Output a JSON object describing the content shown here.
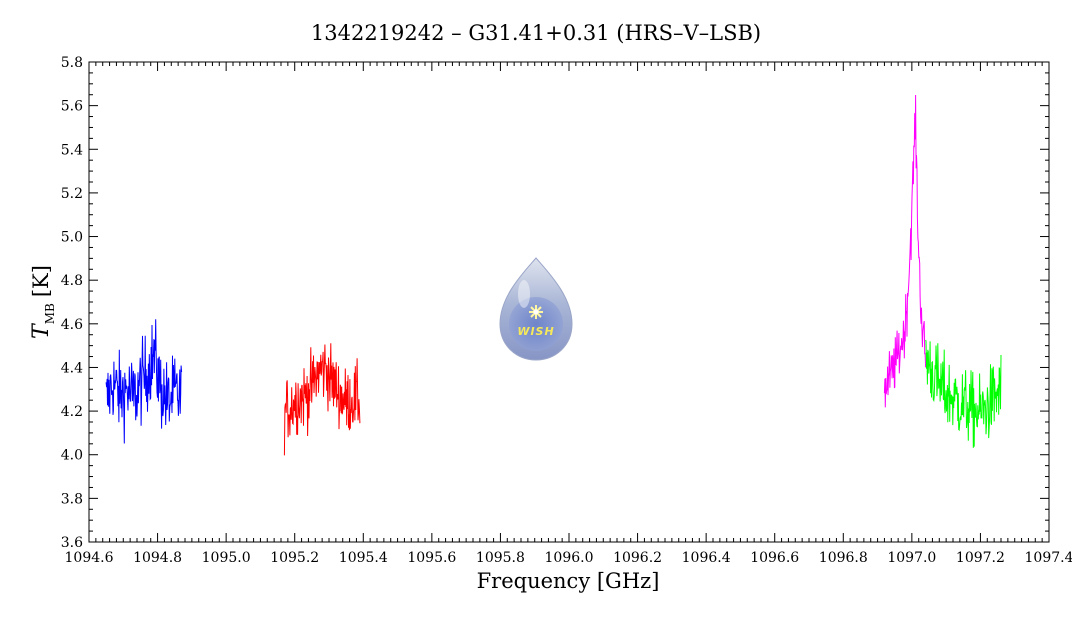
{
  "chart_data": {
    "type": "line",
    "title": "1342219242 – G31.41+0.31 (HRS–V–LSB)",
    "xlabel": "Frequency [GHz]",
    "ylabel": {
      "symbol": "T",
      "subscript": "MB",
      "unit": "[K]"
    },
    "xlim": [
      1094.6,
      1097.4
    ],
    "ylim": [
      3.6,
      5.8
    ],
    "x_ticks": [
      "1094.6",
      "1094.8",
      "1095.0",
      "1095.2",
      "1095.4",
      "1095.6",
      "1095.8",
      "1096.0",
      "1096.2",
      "1096.4",
      "1096.6",
      "1096.8",
      "1097.0",
      "1097.2",
      "1097.4"
    ],
    "y_ticks": [
      "3.6",
      "3.8",
      "4.0",
      "4.2",
      "4.4",
      "4.6",
      "4.8",
      "5.0",
      "5.2",
      "5.4",
      "5.6",
      "5.8"
    ],
    "grid": false,
    "legend": "none",
    "series": [
      {
        "color": "#0000ff",
        "x": [
          1094.65,
          1094.67,
          1094.69,
          1094.71,
          1094.73,
          1094.75,
          1094.77,
          1094.79,
          1094.81,
          1094.83,
          1094.85,
          1094.87
        ],
        "y": [
          4.24,
          4.33,
          4.27,
          4.3,
          4.26,
          4.32,
          4.38,
          4.46,
          4.3,
          4.24,
          4.28,
          4.26
        ],
        "noise": 0.13
      },
      {
        "color": "#ff0000",
        "x": [
          1095.17,
          1095.19,
          1095.21,
          1095.23,
          1095.25,
          1095.27,
          1095.29,
          1095.31,
          1095.33,
          1095.35,
          1095.37,
          1095.39
        ],
        "y": [
          4.19,
          4.23,
          4.26,
          4.27,
          4.31,
          4.38,
          4.4,
          4.33,
          4.28,
          4.24,
          4.26,
          4.25
        ],
        "noise": 0.11
      },
      {
        "color": "#ff00ff",
        "x": [
          1096.92,
          1096.94,
          1096.96,
          1096.98,
          1096.99,
          1097.0,
          1097.01,
          1097.02,
          1097.03,
          1097.04
        ],
        "y": [
          4.29,
          4.37,
          4.45,
          4.58,
          4.78,
          5.12,
          5.55,
          4.92,
          4.58,
          4.45
        ],
        "noise": 0.09
      },
      {
        "color": "#00ff00",
        "x": [
          1097.04,
          1097.06,
          1097.08,
          1097.1,
          1097.12,
          1097.14,
          1097.16,
          1097.18,
          1097.2,
          1097.22,
          1097.24,
          1097.26
        ],
        "y": [
          4.46,
          4.38,
          4.32,
          4.28,
          4.26,
          4.24,
          4.22,
          4.2,
          4.19,
          4.22,
          4.26,
          4.3
        ],
        "noise": 0.12
      }
    ]
  },
  "logo": {
    "text": "WISH"
  }
}
